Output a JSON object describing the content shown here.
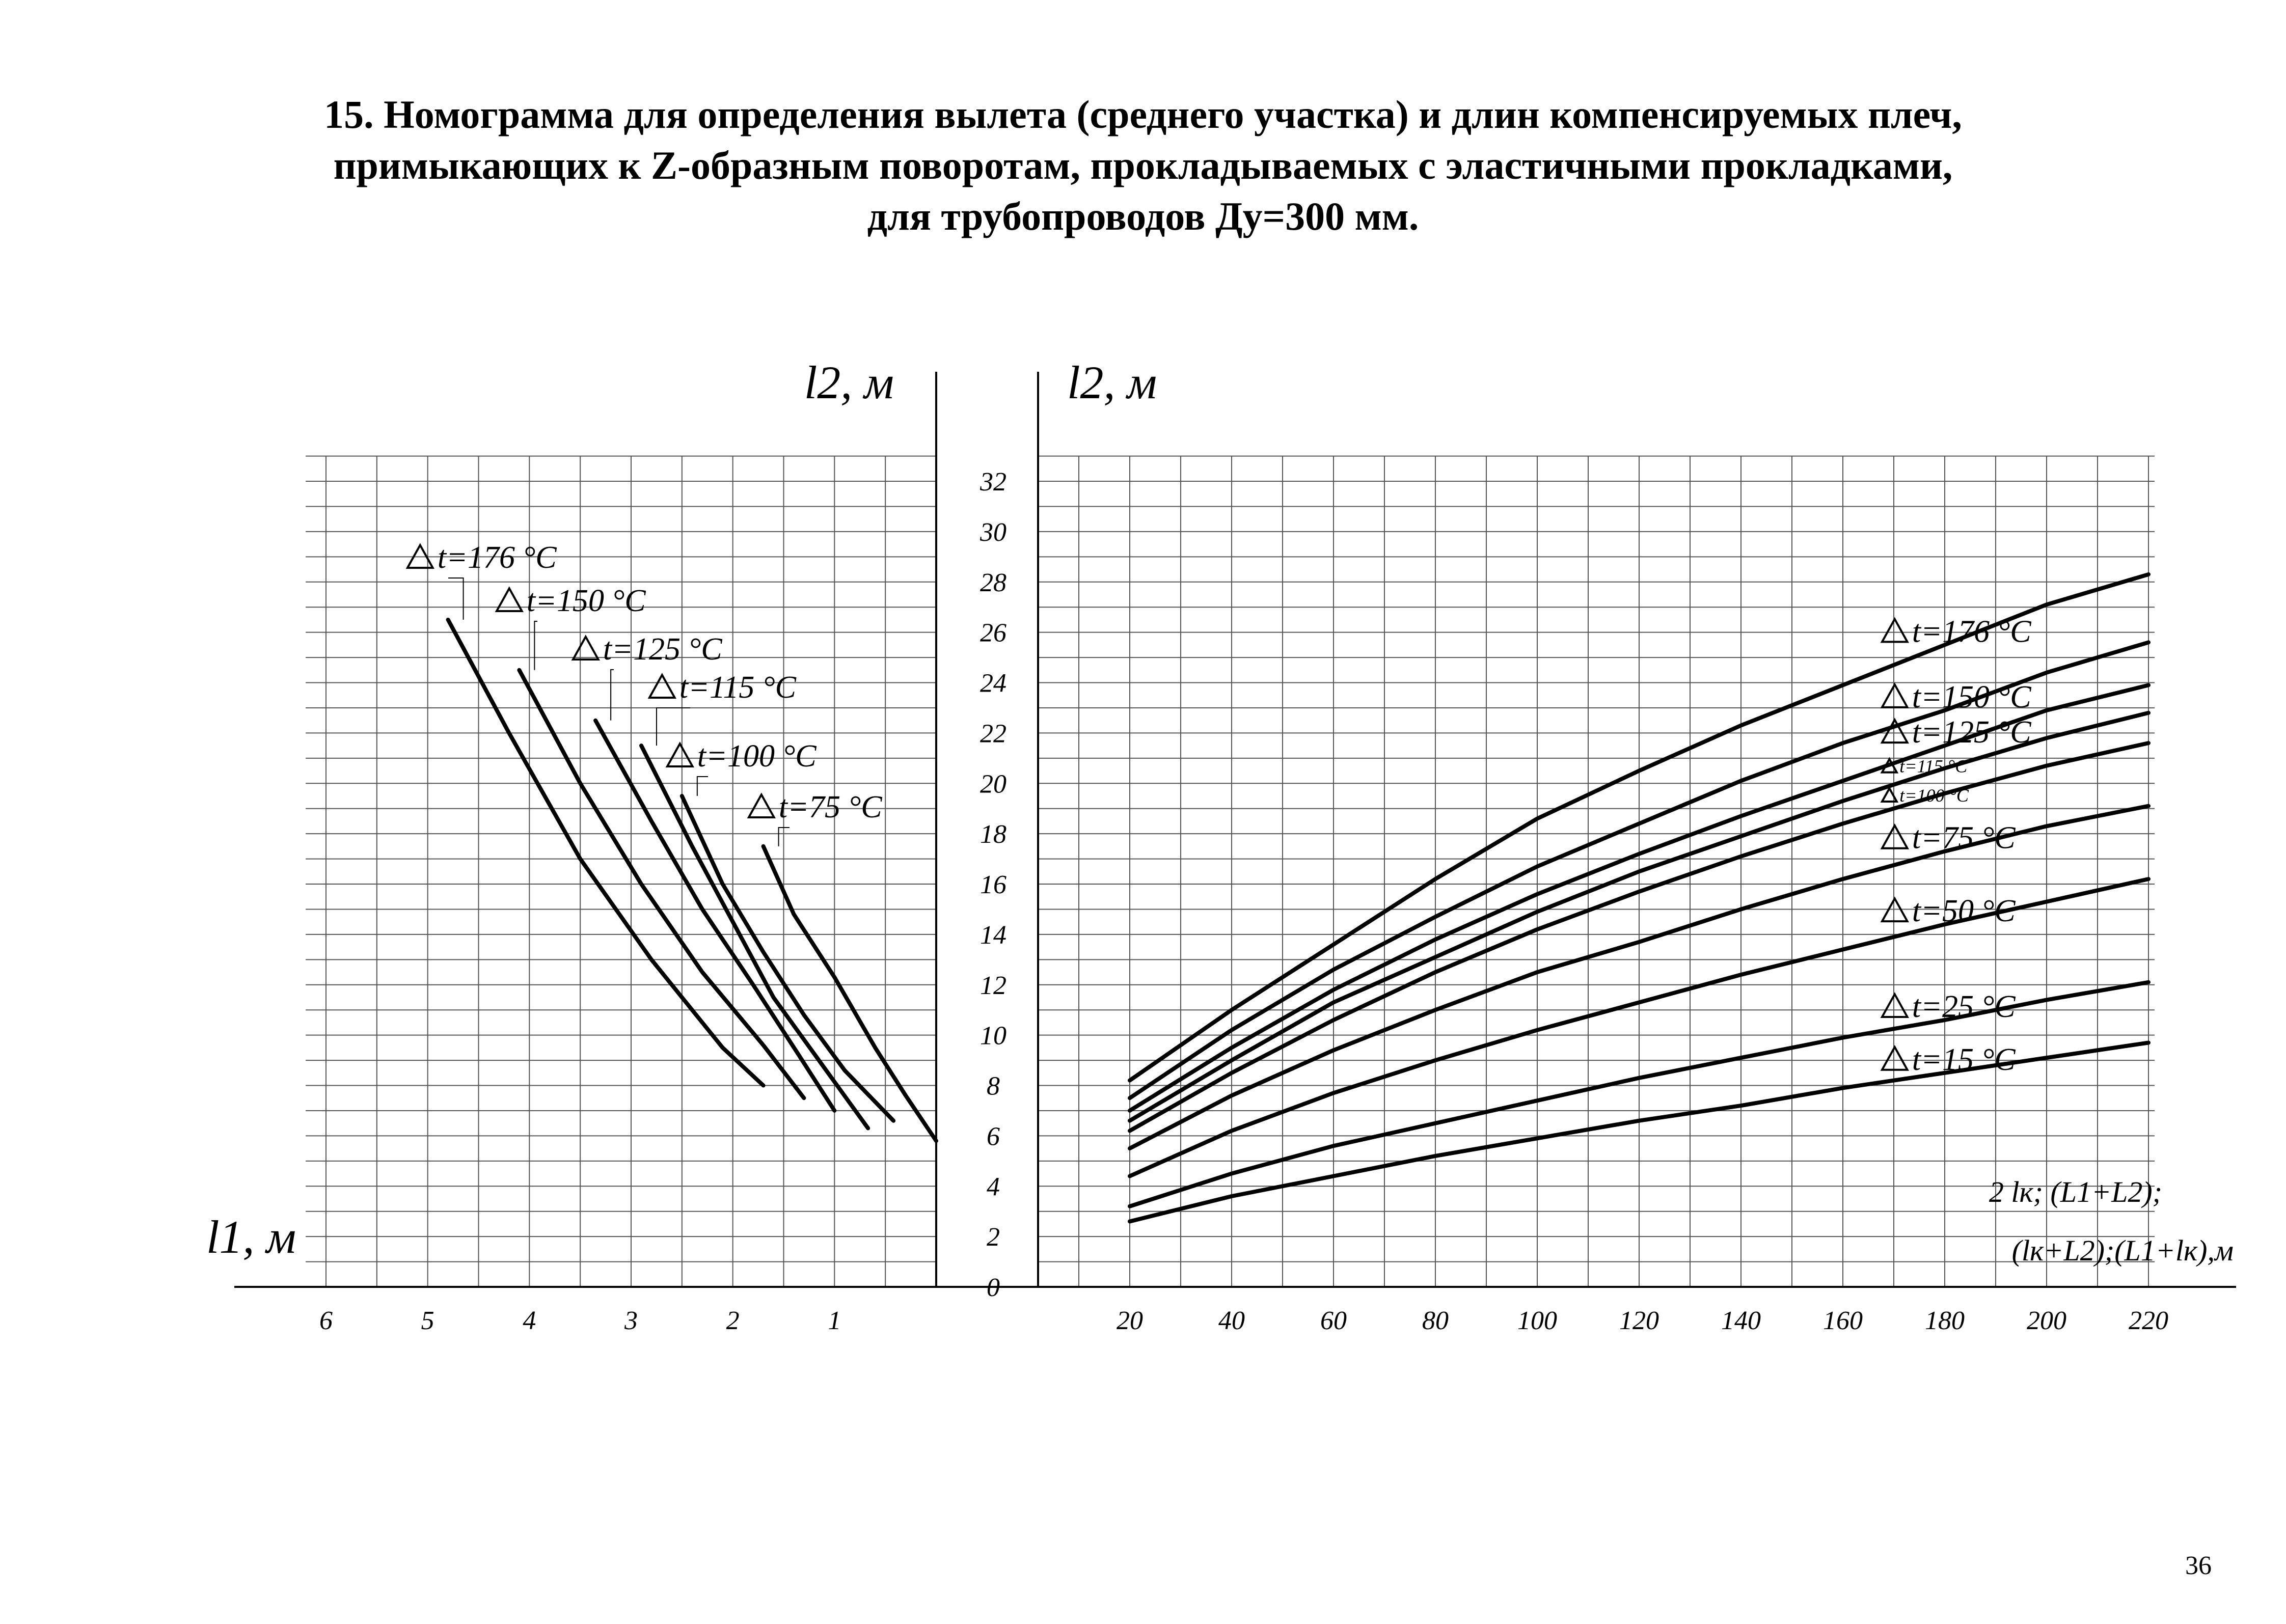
{
  "page": {
    "title_lines": [
      "15. Номограмма для определения вылета (среднего  участка)  и длин компенсируемых плеч,",
      "примыкающих  к  Z-образным поворотам, прокладываемых  с эластичными прокладками,",
      "для трубопроводов  Ду=300 мм."
    ],
    "page_number": "36"
  },
  "chart_data": [
    {
      "type": "line",
      "position": "left",
      "ylabel": "l2, м",
      "xlabel": "l1, м",
      "x_ticks": [
        "6",
        "5",
        "4",
        "3",
        "2",
        "1"
      ],
      "xlim": [
        6.2,
        0
      ],
      "ylim": [
        0,
        33
      ],
      "x_reversed": true,
      "grid": true,
      "series": [
        {
          "name": "t=176 °C",
          "points": [
            [
              4.8,
              26.5
            ],
            [
              4.2,
              22
            ],
            [
              3.5,
              17
            ],
            [
              2.8,
              13
            ],
            [
              2.1,
              9.5
            ],
            [
              1.7,
              8
            ]
          ]
        },
        {
          "name": "t=150 °C",
          "points": [
            [
              4.1,
              24.5
            ],
            [
              3.5,
              20
            ],
            [
              2.9,
              16
            ],
            [
              2.3,
              12.5
            ],
            [
              1.7,
              9.6
            ],
            [
              1.3,
              7.5
            ]
          ]
        },
        {
          "name": "t=125 °C",
          "points": [
            [
              3.35,
              22.5
            ],
            [
              2.8,
              18.5
            ],
            [
              2.3,
              15
            ],
            [
              1.8,
              12
            ],
            [
              1.35,
              9.2
            ],
            [
              1.0,
              7
            ]
          ]
        },
        {
          "name": "t=115 °C",
          "points": [
            [
              2.9,
              21.5
            ],
            [
              2.4,
              17.5
            ],
            [
              2.0,
              14.5
            ],
            [
              1.6,
              11.5
            ],
            [
              1.1,
              8.7
            ],
            [
              0.67,
              6.3
            ]
          ]
        },
        {
          "name": "t=100 °C",
          "points": [
            [
              2.5,
              19.5
            ],
            [
              2.1,
              16
            ],
            [
              1.7,
              13.3
            ],
            [
              1.3,
              10.8
            ],
            [
              0.9,
              8.6
            ],
            [
              0.42,
              6.6
            ]
          ]
        },
        {
          "name": "t=75 °C",
          "points": [
            [
              1.7,
              17.5
            ],
            [
              1.4,
              14.8
            ],
            [
              1.0,
              12.3
            ],
            [
              0.6,
              9.5
            ],
            [
              0.3,
              7.6
            ],
            [
              0.0,
              5.8
            ]
          ]
        }
      ]
    },
    {
      "type": "line",
      "position": "right",
      "ylabel": "l2, м",
      "xlabel_lines": [
        "2 lк; (L1+L2);",
        "(lк+L2);(L1+lк),м"
      ],
      "x_ticks": [
        "20",
        "40",
        "60",
        "80",
        "100",
        "120",
        "140",
        "160",
        "180",
        "200",
        "220"
      ],
      "y_ticks": [
        "0",
        "2",
        "4",
        "6",
        "8",
        "10",
        "12",
        "14",
        "16",
        "18",
        "20",
        "22",
        "24",
        "26",
        "28",
        "30",
        "32"
      ],
      "xlim": [
        0,
        220
      ],
      "ylim": [
        0,
        33
      ],
      "grid": true,
      "series": [
        {
          "name": "t=176 °C",
          "points": [
            [
              20,
              8.2
            ],
            [
              40,
              11
            ],
            [
              60,
              13.6
            ],
            [
              80,
              16.2
            ],
            [
              100,
              18.6
            ],
            [
              120,
              20.5
            ],
            [
              140,
              22.3
            ],
            [
              160,
              23.9
            ],
            [
              180,
              25.5
            ],
            [
              200,
              27.1
            ],
            [
              220,
              28.3
            ]
          ]
        },
        {
          "name": "t=150 °C",
          "points": [
            [
              20,
              7.5
            ],
            [
              40,
              10.2
            ],
            [
              60,
              12.6
            ],
            [
              80,
              14.7
            ],
            [
              100,
              16.7
            ],
            [
              120,
              18.4
            ],
            [
              140,
              20.1
            ],
            [
              160,
              21.6
            ],
            [
              180,
              22.9
            ],
            [
              200,
              24.4
            ],
            [
              220,
              25.6
            ]
          ]
        },
        {
          "name": "t=125 °C",
          "points": [
            [
              20,
              7
            ],
            [
              40,
              9.5
            ],
            [
              60,
              11.8
            ],
            [
              80,
              13.8
            ],
            [
              100,
              15.6
            ],
            [
              120,
              17.2
            ],
            [
              140,
              18.7
            ],
            [
              160,
              20.1
            ],
            [
              180,
              21.5
            ],
            [
              200,
              22.9
            ],
            [
              220,
              23.9
            ]
          ]
        },
        {
          "name": "t=115 °C",
          "points": [
            [
              20,
              6.6
            ],
            [
              40,
              9
            ],
            [
              60,
              11.3
            ],
            [
              80,
              13.1
            ],
            [
              100,
              14.9
            ],
            [
              120,
              16.5
            ],
            [
              140,
              17.9
            ],
            [
              160,
              19.3
            ],
            [
              180,
              20.6
            ],
            [
              200,
              21.8
            ],
            [
              220,
              22.8
            ]
          ]
        },
        {
          "name": "t=100 °C",
          "points": [
            [
              20,
              6.2
            ],
            [
              40,
              8.5
            ],
            [
              60,
              10.6
            ],
            [
              80,
              12.5
            ],
            [
              100,
              14.2
            ],
            [
              120,
              15.7
            ],
            [
              140,
              17.1
            ],
            [
              160,
              18.4
            ],
            [
              180,
              19.6
            ],
            [
              200,
              20.7
            ],
            [
              220,
              21.6
            ]
          ]
        },
        {
          "name": "t=75 °C",
          "points": [
            [
              20,
              5.5
            ],
            [
              40,
              7.6
            ],
            [
              60,
              9.4
            ],
            [
              80,
              11
            ],
            [
              100,
              12.5
            ],
            [
              120,
              13.7
            ],
            [
              140,
              15
            ],
            [
              160,
              16.2
            ],
            [
              180,
              17.3
            ],
            [
              200,
              18.3
            ],
            [
              220,
              19.1
            ]
          ]
        },
        {
          "name": "t=50 °C",
          "points": [
            [
              20,
              4.4
            ],
            [
              40,
              6.2
            ],
            [
              60,
              7.7
            ],
            [
              80,
              9
            ],
            [
              100,
              10.2
            ],
            [
              120,
              11.3
            ],
            [
              140,
              12.4
            ],
            [
              160,
              13.4
            ],
            [
              180,
              14.4
            ],
            [
              200,
              15.3
            ],
            [
              220,
              16.2
            ]
          ]
        },
        {
          "name": "t=25 °C",
          "points": [
            [
              20,
              3.2
            ],
            [
              40,
              4.5
            ],
            [
              60,
              5.6
            ],
            [
              80,
              6.5
            ],
            [
              100,
              7.4
            ],
            [
              120,
              8.3
            ],
            [
              140,
              9.1
            ],
            [
              160,
              9.9
            ],
            [
              180,
              10.6
            ],
            [
              200,
              11.4
            ],
            [
              220,
              12.1
            ]
          ]
        },
        {
          "name": "t=15 °C",
          "points": [
            [
              20,
              2.6
            ],
            [
              40,
              3.6
            ],
            [
              60,
              4.4
            ],
            [
              80,
              5.2
            ],
            [
              100,
              5.9
            ],
            [
              120,
              6.6
            ],
            [
              140,
              7.2
            ],
            [
              160,
              7.9
            ],
            [
              180,
              8.5
            ],
            [
              200,
              9.1
            ],
            [
              220,
              9.7
            ]
          ]
        }
      ]
    }
  ]
}
